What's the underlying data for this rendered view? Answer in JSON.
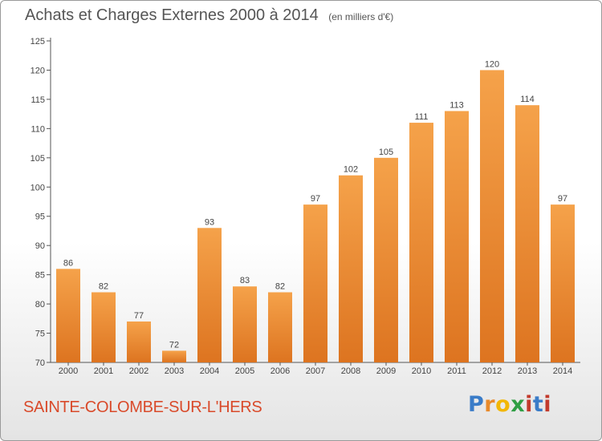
{
  "header": {
    "title": "Achats et Charges Externes 2000 à 2014",
    "subtitle": "(en milliers d'€)"
  },
  "footer": {
    "commune": "SAINTE-COLOMBE-SUR-L'HERS",
    "logo": "Proxiti"
  },
  "colors": {
    "bar_light": "#f5a24a",
    "bar_dark": "#dd7420",
    "title": "#555555",
    "commune": "#d94a2a"
  },
  "chart_data": {
    "type": "bar",
    "title": "Achats et Charges Externes 2000 à 2014",
    "subtitle": "(en milliers d'€)",
    "categories": [
      "2000",
      "2001",
      "2002",
      "2003",
      "2004",
      "2005",
      "2006",
      "2007",
      "2008",
      "2009",
      "2010",
      "2011",
      "2012",
      "2013",
      "2014"
    ],
    "values": [
      86,
      82,
      77,
      72,
      93,
      83,
      82,
      97,
      102,
      105,
      111,
      113,
      120,
      114,
      97
    ],
    "ylim": [
      70,
      125
    ],
    "yticks": [
      70,
      75,
      80,
      85,
      90,
      95,
      100,
      105,
      110,
      115,
      120,
      125
    ],
    "grid": false,
    "legend": "none"
  }
}
